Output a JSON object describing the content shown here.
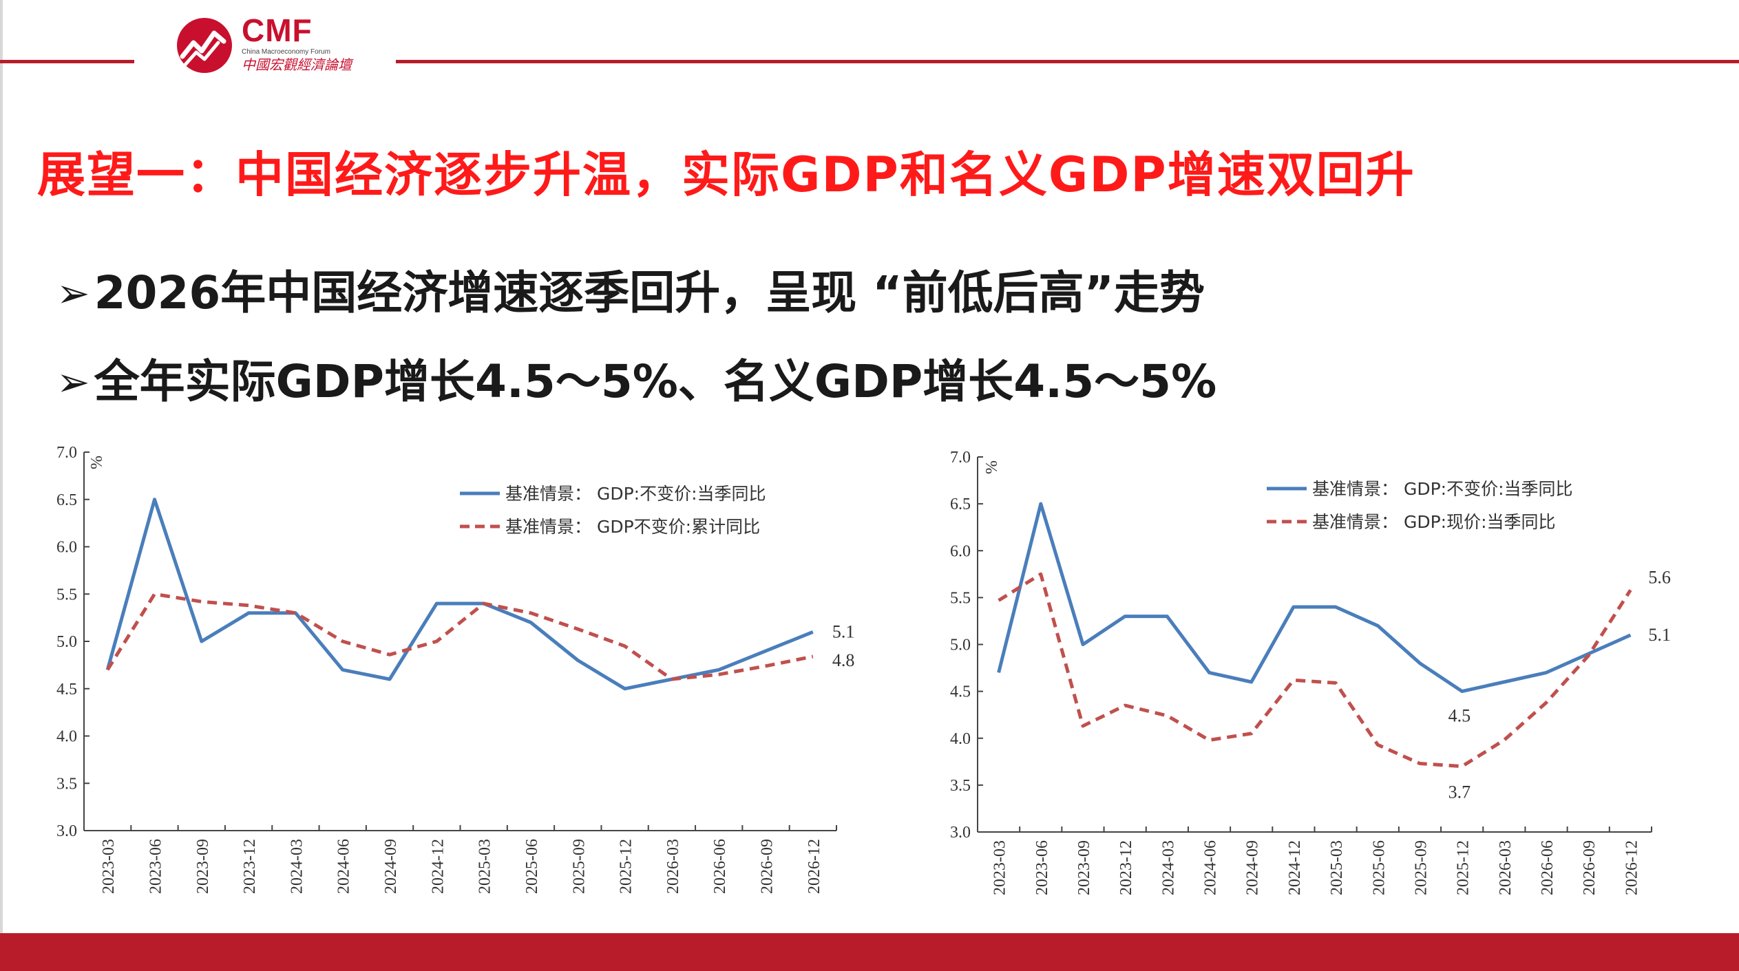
{
  "header": {
    "logo_text": "CMF",
    "logo_subtitle_en": "China Macroeconomy Forum",
    "logo_subtitle_cn": "中國宏觀經濟論壇",
    "colors": {
      "brand": "#b81c2b",
      "title": "#ff1a1a"
    }
  },
  "title": "展望一：中国经济逐步升温，实际GDP和名义GDP增速双回升",
  "bullets": [
    {
      "marker": "➢",
      "text": "2026年中国经济增速逐季回升，呈现 “前低后高”走势"
    },
    {
      "marker": "➢",
      "text": "全年实际GDP增长4.5～5%、名义GDP增长4.5～5%"
    }
  ],
  "chart_data": [
    {
      "type": "line",
      "ylabel": "%",
      "ylim": [
        3.0,
        7.0
      ],
      "yticks": [
        "3.0",
        "3.5",
        "4.0",
        "4.5",
        "5.0",
        "5.5",
        "6.0",
        "6.5",
        "7.0"
      ],
      "categories": [
        "2023-03",
        "2023-06",
        "2023-09",
        "2023-12",
        "2024-03",
        "2024-06",
        "2024-09",
        "2024-12",
        "2025-03",
        "2025-06",
        "2025-09",
        "2025-12",
        "2026-03",
        "2026-06",
        "2026-09",
        "2026-12"
      ],
      "legend_position": "top-right",
      "series": [
        {
          "name": "基准情景： GDP:不变价:当季同比",
          "color": "#4a7ebb",
          "style": "solid",
          "values": [
            4.7,
            6.5,
            5.0,
            5.3,
            5.3,
            4.7,
            4.6,
            5.4,
            5.4,
            5.2,
            4.8,
            4.5,
            4.6,
            4.7,
            4.9,
            5.1
          ]
        },
        {
          "name": "基准情景： GDP不变价:累计同比",
          "color": "#c0504d",
          "style": "dashed",
          "values": [
            4.7,
            5.5,
            5.42,
            5.38,
            5.3,
            5.0,
            4.86,
            5.0,
            5.4,
            5.3,
            5.13,
            4.95,
            4.6,
            4.65,
            4.74,
            4.84
          ]
        }
      ],
      "annotations": [
        {
          "text": "5.1",
          "category": "2026-12",
          "value": 5.1
        },
        {
          "text": "4.8",
          "category": "2026-12",
          "value": 4.84
        }
      ]
    },
    {
      "type": "line",
      "ylabel": "%",
      "ylim": [
        3.0,
        7.0
      ],
      "yticks": [
        "3.0",
        "3.5",
        "4.0",
        "4.5",
        "5.0",
        "5.5",
        "6.0",
        "6.5",
        "7.0"
      ],
      "categories": [
        "2023-03",
        "2023-06",
        "2023-09",
        "2023-12",
        "2024-03",
        "2024-06",
        "2024-09",
        "2024-12",
        "2025-03",
        "2025-06",
        "2025-09",
        "2025-12",
        "2026-03",
        "2026-06",
        "2026-09",
        "2026-12"
      ],
      "legend_position": "top-right",
      "series": [
        {
          "name": "基准情景： GDP:不变价:当季同比",
          "color": "#4a7ebb",
          "style": "solid",
          "values": [
            4.7,
            6.5,
            5.0,
            5.3,
            5.3,
            4.7,
            4.6,
            5.4,
            5.4,
            5.2,
            4.8,
            4.5,
            4.6,
            4.7,
            4.9,
            5.1
          ]
        },
        {
          "name": "基准情景： GDP:现价:当季同比",
          "color": "#c0504d",
          "style": "dashed",
          "values": [
            5.47,
            5.75,
            4.13,
            4.35,
            4.24,
            3.98,
            4.05,
            4.62,
            4.59,
            3.93,
            3.73,
            3.7,
            3.98,
            4.38,
            4.88,
            5.58
          ]
        }
      ],
      "annotations": [
        {
          "text": "5.6",
          "category": "2026-12",
          "value": 5.58
        },
        {
          "text": "5.1",
          "category": "2026-12",
          "value": 5.1
        },
        {
          "text": "4.5",
          "category": "2025-12",
          "value": 4.5
        },
        {
          "text": "3.7",
          "category": "2025-12",
          "value": 3.7
        }
      ]
    }
  ]
}
